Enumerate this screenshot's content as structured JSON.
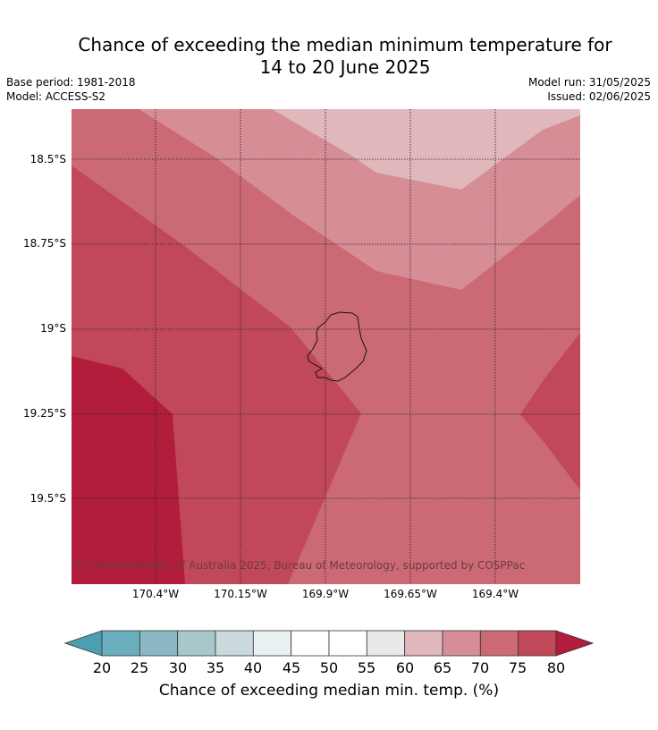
{
  "header": {
    "title_line1": "Chance of exceeding the median minimum temperature for",
    "title_line2": "14 to 20 June 2025",
    "base_period": "Base period: 1981-2018",
    "model": "Model: ACCESS-S2",
    "model_run": "Model run: 31/05/2025",
    "issued": "Issued: 02/06/2025"
  },
  "map": {
    "latitude_labels": [
      "18.5°S",
      "18.75°S",
      "19°S",
      "19.25°S",
      "19.5°S"
    ],
    "longitude_labels": [
      "170.4°W",
      "170.15°W",
      "169.9°W",
      "169.65°W",
      "169.4°W"
    ],
    "copyright": "© Commonwealth of Australia 2025, Bureau of Meteorology, supported by COSPPac",
    "palette": {
      "60-65": "#e0b7bb",
      "65-70": "#d68d95",
      "70-75": "#cb6a74",
      "75-80": "#c04858",
      "80+": "#b11d3a"
    }
  },
  "colorbar": {
    "ticks": [
      "20",
      "25",
      "30",
      "35",
      "40",
      "45",
      "50",
      "55",
      "60",
      "65",
      "70",
      "75",
      "80"
    ],
    "colors": [
      "#6aaebd",
      "#8ab7c3",
      "#a8c7cb",
      "#c9d9dc",
      "#e8f0f1",
      "#ffffff",
      "#ffffff",
      "#e9e9e9",
      "#e0b7bb",
      "#d68d95",
      "#cb6a74",
      "#c04858"
    ],
    "under_color": "#4b9fb0",
    "over_color": "#b11d3a",
    "label": "Chance of exceeding median min. temp. (%)"
  }
}
